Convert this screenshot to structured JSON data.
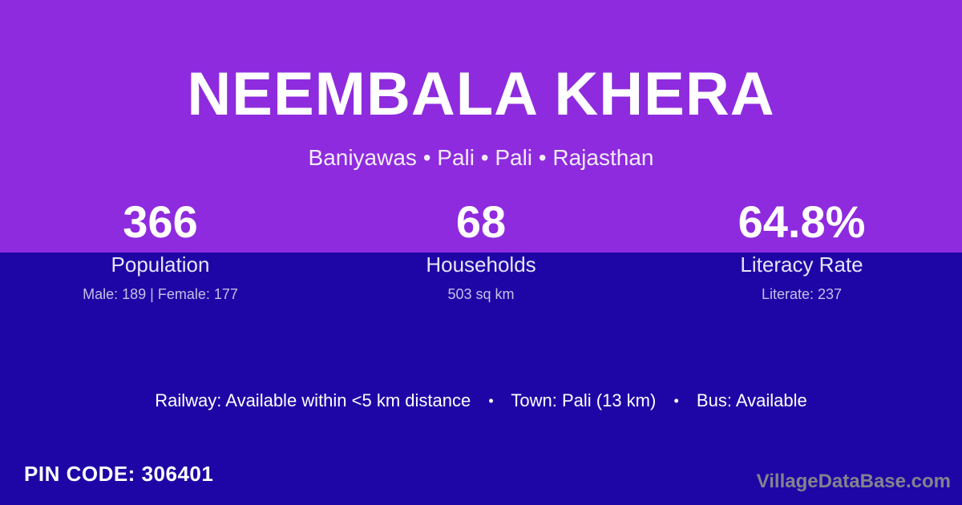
{
  "colors": {
    "bg_top": "#8E2BDE",
    "bg_bottom": "#1E06A6",
    "text_primary": "#FFFFFF",
    "text_subtitle": "#F3EBFC",
    "text_label": "#E9E4F6",
    "text_detail": "#C6BFE3",
    "watermark": "#83838D"
  },
  "header": {
    "title": "NEEMBALA KHERA",
    "subtitle": "Baniyawas • Pali • Pali • Rajasthan"
  },
  "stats": [
    {
      "value": "366",
      "label": "Population",
      "detail": "Male: 189 | Female: 177"
    },
    {
      "value": "68",
      "label": "Households",
      "detail": "503 sq km"
    },
    {
      "value": "64.8%",
      "label": "Literacy Rate",
      "detail": "Literate: 237"
    }
  ],
  "info_line": {
    "railway": "Railway: Available within <5 km distance",
    "separator": "•",
    "town": "Town: Pali (13 km)",
    "bus": "Bus: Available"
  },
  "footer": {
    "pin_code": "PIN CODE: 306401",
    "watermark": "VillageDataBase.com"
  }
}
